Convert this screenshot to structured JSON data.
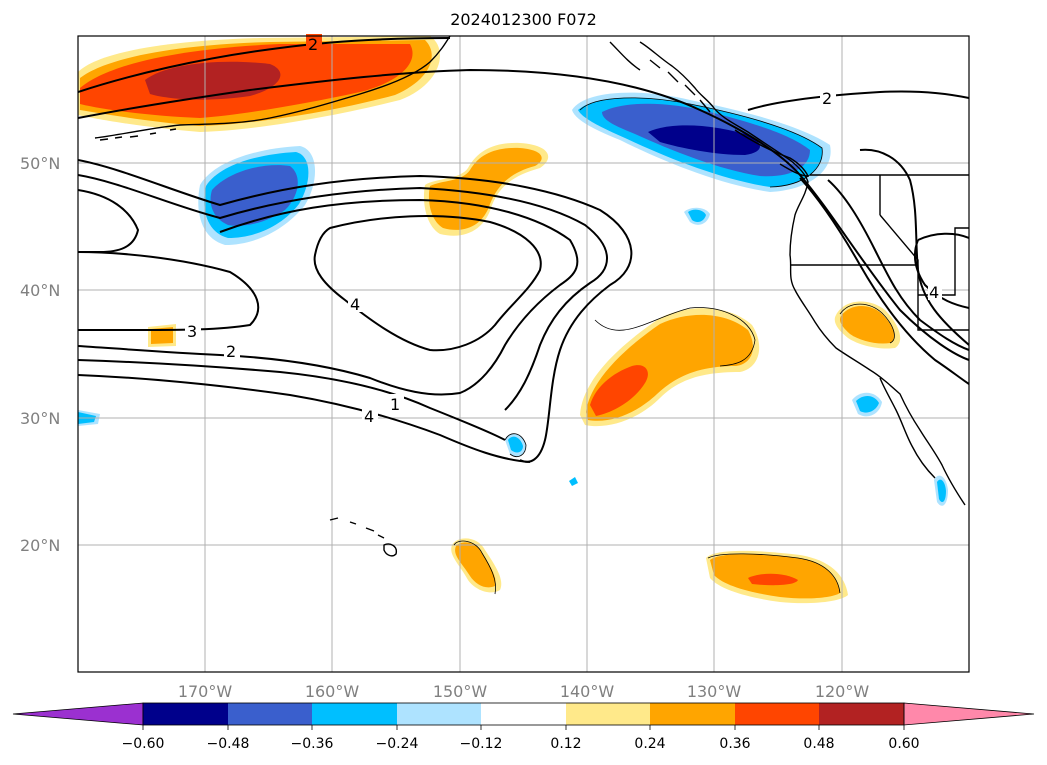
{
  "title": "2024012300 F072",
  "map": {
    "lon_range": [
      -180,
      -110
    ],
    "lat_range": [
      10,
      60
    ],
    "lat_ticks": [
      "50°N",
      "40°N",
      "30°N",
      "20°N"
    ],
    "lon_ticks": [
      "170°W",
      "160°W",
      "150°W",
      "140°W",
      "130°W",
      "120°W"
    ],
    "grid": true,
    "contour_labels": [
      "2",
      "2",
      "4",
      "4",
      "3",
      "2",
      "1",
      "4"
    ]
  },
  "colorbar": {
    "ticks": [
      "−0.60",
      "−0.48",
      "−0.36",
      "−0.24",
      "−0.12",
      "0.12",
      "0.24",
      "0.36",
      "0.48",
      "0.60"
    ],
    "colors": [
      "#9b30d0",
      "#00008b",
      "#3a5fcd",
      "#00bfff",
      "#aee3ff",
      "#ffffff",
      "#ffe98a",
      "#ffa500",
      "#ff4500",
      "#b22222",
      "#ff88aa"
    ]
  }
}
